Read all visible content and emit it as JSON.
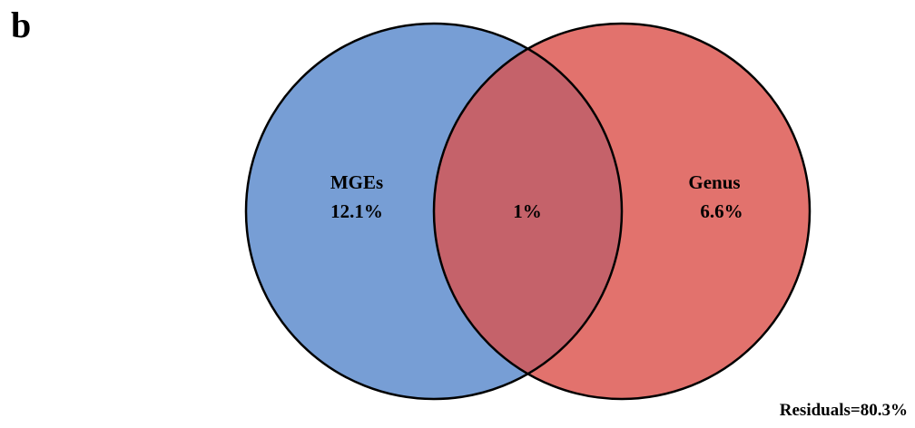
{
  "panel_label": "b",
  "venn": {
    "sets": [
      {
        "name": "MGEs",
        "value": "12.1%",
        "color": "#779ED5"
      },
      {
        "name": "Genus",
        "value": "6.6%",
        "color": "#E2726D"
      }
    ],
    "intersection": {
      "value": "1%",
      "color": "#C5626A"
    },
    "outline_color": "#000000"
  },
  "residuals": "Residuals=80.3%"
}
